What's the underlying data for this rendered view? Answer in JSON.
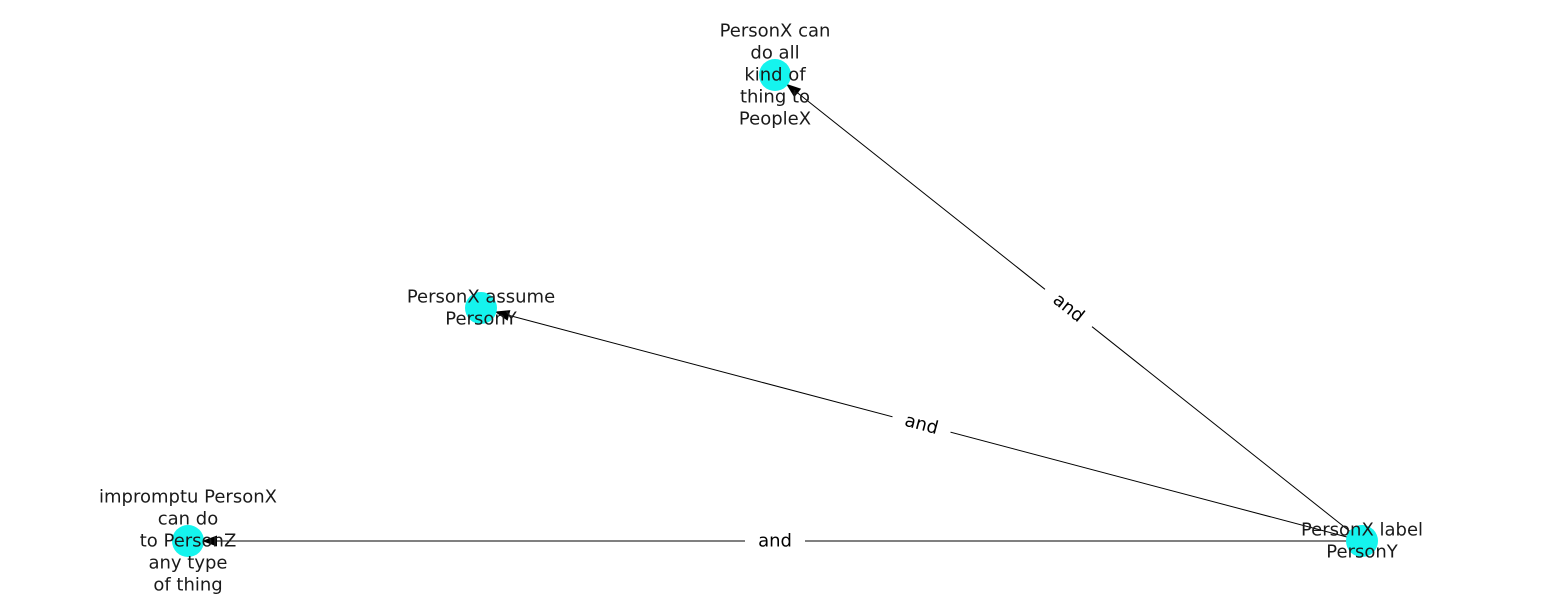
{
  "colors": {
    "node_fill": "#15f4ee",
    "edge": "#000000",
    "label": "#1a1a1a",
    "background": "#ffffff"
  },
  "nodes": [
    {
      "id": "n1",
      "lines": [
        "PersonX can",
        "do all",
        "kind of",
        "thing to",
        "PeopleX"
      ]
    },
    {
      "id": "n2",
      "lines": [
        "PersonX assume",
        "PersonY"
      ]
    },
    {
      "id": "n3",
      "lines": [
        "impromptu PersonX",
        "can do",
        "to PersonZ",
        "any type",
        "of thing"
      ]
    },
    {
      "id": "n4",
      "lines": [
        "PersonX label",
        "PersonY"
      ]
    }
  ],
  "edges": [
    {
      "id": "e1",
      "from": "n4",
      "to": "n1",
      "label": "and"
    },
    {
      "id": "e2",
      "from": "n4",
      "to": "n2",
      "label": "and"
    },
    {
      "id": "e3",
      "from": "n4",
      "to": "n3",
      "label": "and"
    }
  ]
}
